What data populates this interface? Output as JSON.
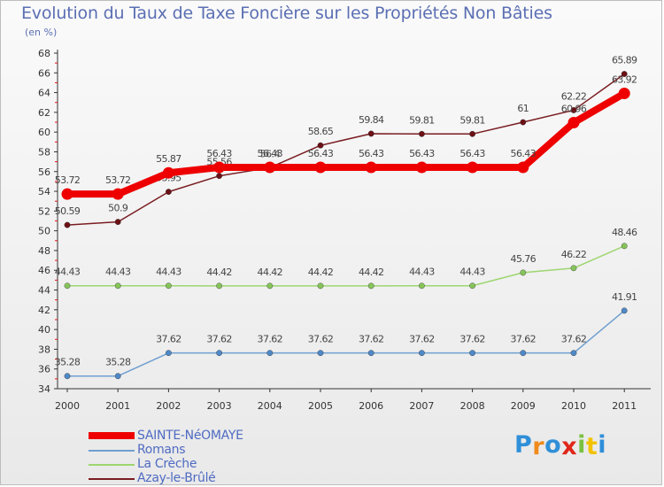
{
  "chart_data": {
    "type": "line",
    "title": "Evolution du Taux de Taxe Foncière sur les Propriétés Non Bâties",
    "unit_label": "(en %)",
    "xlabel": "",
    "ylabel": "",
    "ylim": [
      34,
      68
    ],
    "y_ticks": [
      34,
      36,
      38,
      40,
      42,
      44,
      46,
      48,
      50,
      52,
      54,
      56,
      58,
      60,
      62,
      64,
      66,
      68
    ],
    "categories": [
      "2000",
      "2001",
      "2002",
      "2003",
      "2004",
      "2005",
      "2006",
      "2007",
      "2008",
      "2009",
      "2010",
      "2011"
    ],
    "grid": false,
    "legend_position": "bottom-left",
    "series": [
      {
        "name": "Azay-le-Brûlé",
        "color": "#7a1d22",
        "marker_color": "#6b1015",
        "weight": "thin",
        "values": [
          50.59,
          50.9,
          53.95,
          55.56,
          56.4,
          58.65,
          59.84,
          59.81,
          59.81,
          61,
          62.22,
          65.89
        ],
        "labels": [
          "50.59",
          "50.9",
          "53.95",
          "55.56",
          "56.4",
          "58.65",
          "59.84",
          "59.81",
          "59.81",
          "61",
          "62.22",
          "65.89"
        ],
        "label_side": [
          "above",
          "above",
          "above",
          "above",
          "above",
          "above",
          "above",
          "above",
          "above",
          "above",
          "above",
          "above"
        ]
      },
      {
        "name": "La Crèche",
        "color": "#9dd66f",
        "marker_color": "#86c45a",
        "weight": "thin",
        "values": [
          44.43,
          44.43,
          44.43,
          44.42,
          44.42,
          44.42,
          44.42,
          44.43,
          44.43,
          45.76,
          46.22,
          48.46
        ],
        "labels": [
          "44.43",
          "44.43",
          "44.43",
          "44.42",
          "44.42",
          "44.42",
          "44.42",
          "44.43",
          "44.43",
          "45.76",
          "46.22",
          "48.46"
        ],
        "label_side": [
          "above",
          "above",
          "above",
          "above",
          "above",
          "above",
          "above",
          "above",
          "above",
          "above",
          "above",
          "above"
        ]
      },
      {
        "name": "Romans",
        "color": "#6f9fd0",
        "marker_color": "#4f88c6",
        "weight": "thin",
        "values": [
          35.28,
          35.28,
          37.62,
          37.62,
          37.62,
          37.62,
          37.62,
          37.62,
          37.62,
          37.62,
          37.62,
          41.91
        ],
        "labels": [
          "35.28",
          "35.28",
          "37.62",
          "37.62",
          "37.62",
          "37.62",
          "37.62",
          "37.62",
          "37.62",
          "37.62",
          "37.62",
          "41.91"
        ],
        "label_side": [
          "above",
          "above",
          "above",
          "above",
          "above",
          "above",
          "above",
          "above",
          "above",
          "above",
          "above",
          "above"
        ]
      },
      {
        "name": "SAINTE-NéOMAYE",
        "color": "#ee0000",
        "marker_color": "#ee0000",
        "weight": "thick",
        "values": [
          53.72,
          53.72,
          55.87,
          56.43,
          56.43,
          56.43,
          56.43,
          56.43,
          56.43,
          56.43,
          60.96,
          63.92
        ],
        "labels": [
          "53.72",
          "53.72",
          "55.87",
          "56.43",
          "56.43",
          "56.43",
          "56.43",
          "56.43",
          "56.43",
          "56.43",
          "60.96",
          "63.92"
        ],
        "label_side": [
          "above",
          "above",
          "above",
          "above",
          "above",
          "above",
          "above",
          "above",
          "above",
          "above",
          "above",
          "below"
        ]
      }
    ]
  },
  "legend": {
    "items": [
      {
        "label": "SAINTE-NéOMAYE",
        "color": "#ee0000",
        "weight": "thick"
      },
      {
        "label": "Romans",
        "color": "#6f9fd0",
        "weight": "thin"
      },
      {
        "label": "La Crèche",
        "color": "#9dd66f",
        "weight": "thin"
      },
      {
        "label": "Azay-le-Brûlé",
        "color": "#7a1d22",
        "weight": "thin"
      }
    ]
  },
  "logo": {
    "letters": [
      "P",
      "r",
      "o",
      "x",
      "i",
      "t",
      "i"
    ],
    "colors": [
      "#2f8fd8",
      "#f08a1c",
      "#2f8fd8",
      "#e0261a",
      "#7ac142",
      "#f2c200",
      "#2f8fd8"
    ]
  }
}
